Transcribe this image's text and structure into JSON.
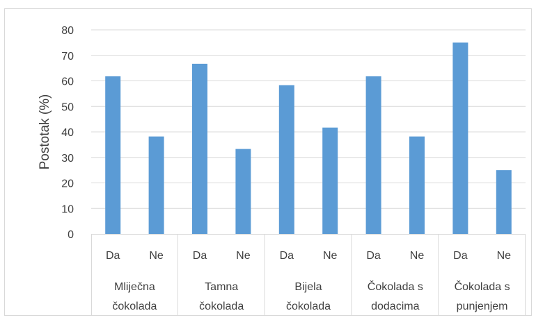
{
  "chart_data": {
    "type": "bar",
    "title": "",
    "xlabel": "",
    "ylabel": "Postotak (%)",
    "ylim": [
      0,
      80
    ],
    "yticks": [
      0,
      10,
      20,
      30,
      40,
      50,
      60,
      70,
      80
    ],
    "grid": true,
    "legend": "none",
    "bar_color": "#5b9bd5",
    "groups": [
      {
        "label_lines": [
          "Mliječna",
          "čokolada"
        ],
        "categories": [
          "Da",
          "Ne"
        ],
        "values": [
          61.8,
          38.2
        ]
      },
      {
        "label_lines": [
          "Tamna",
          "čokolada"
        ],
        "categories": [
          "Da",
          "Ne"
        ],
        "values": [
          66.7,
          33.3
        ]
      },
      {
        "label_lines": [
          "Bijela",
          "čokolada"
        ],
        "categories": [
          "Da",
          "Ne"
        ],
        "values": [
          58.3,
          41.7
        ]
      },
      {
        "label_lines": [
          "Čokolada s",
          "dodacima"
        ],
        "categories": [
          "Da",
          "Ne"
        ],
        "values": [
          61.8,
          38.2
        ]
      },
      {
        "label_lines": [
          "Čokolada s",
          "punjenjem"
        ],
        "categories": [
          "Da",
          "Ne"
        ],
        "values": [
          75.0,
          25.0
        ]
      }
    ]
  }
}
